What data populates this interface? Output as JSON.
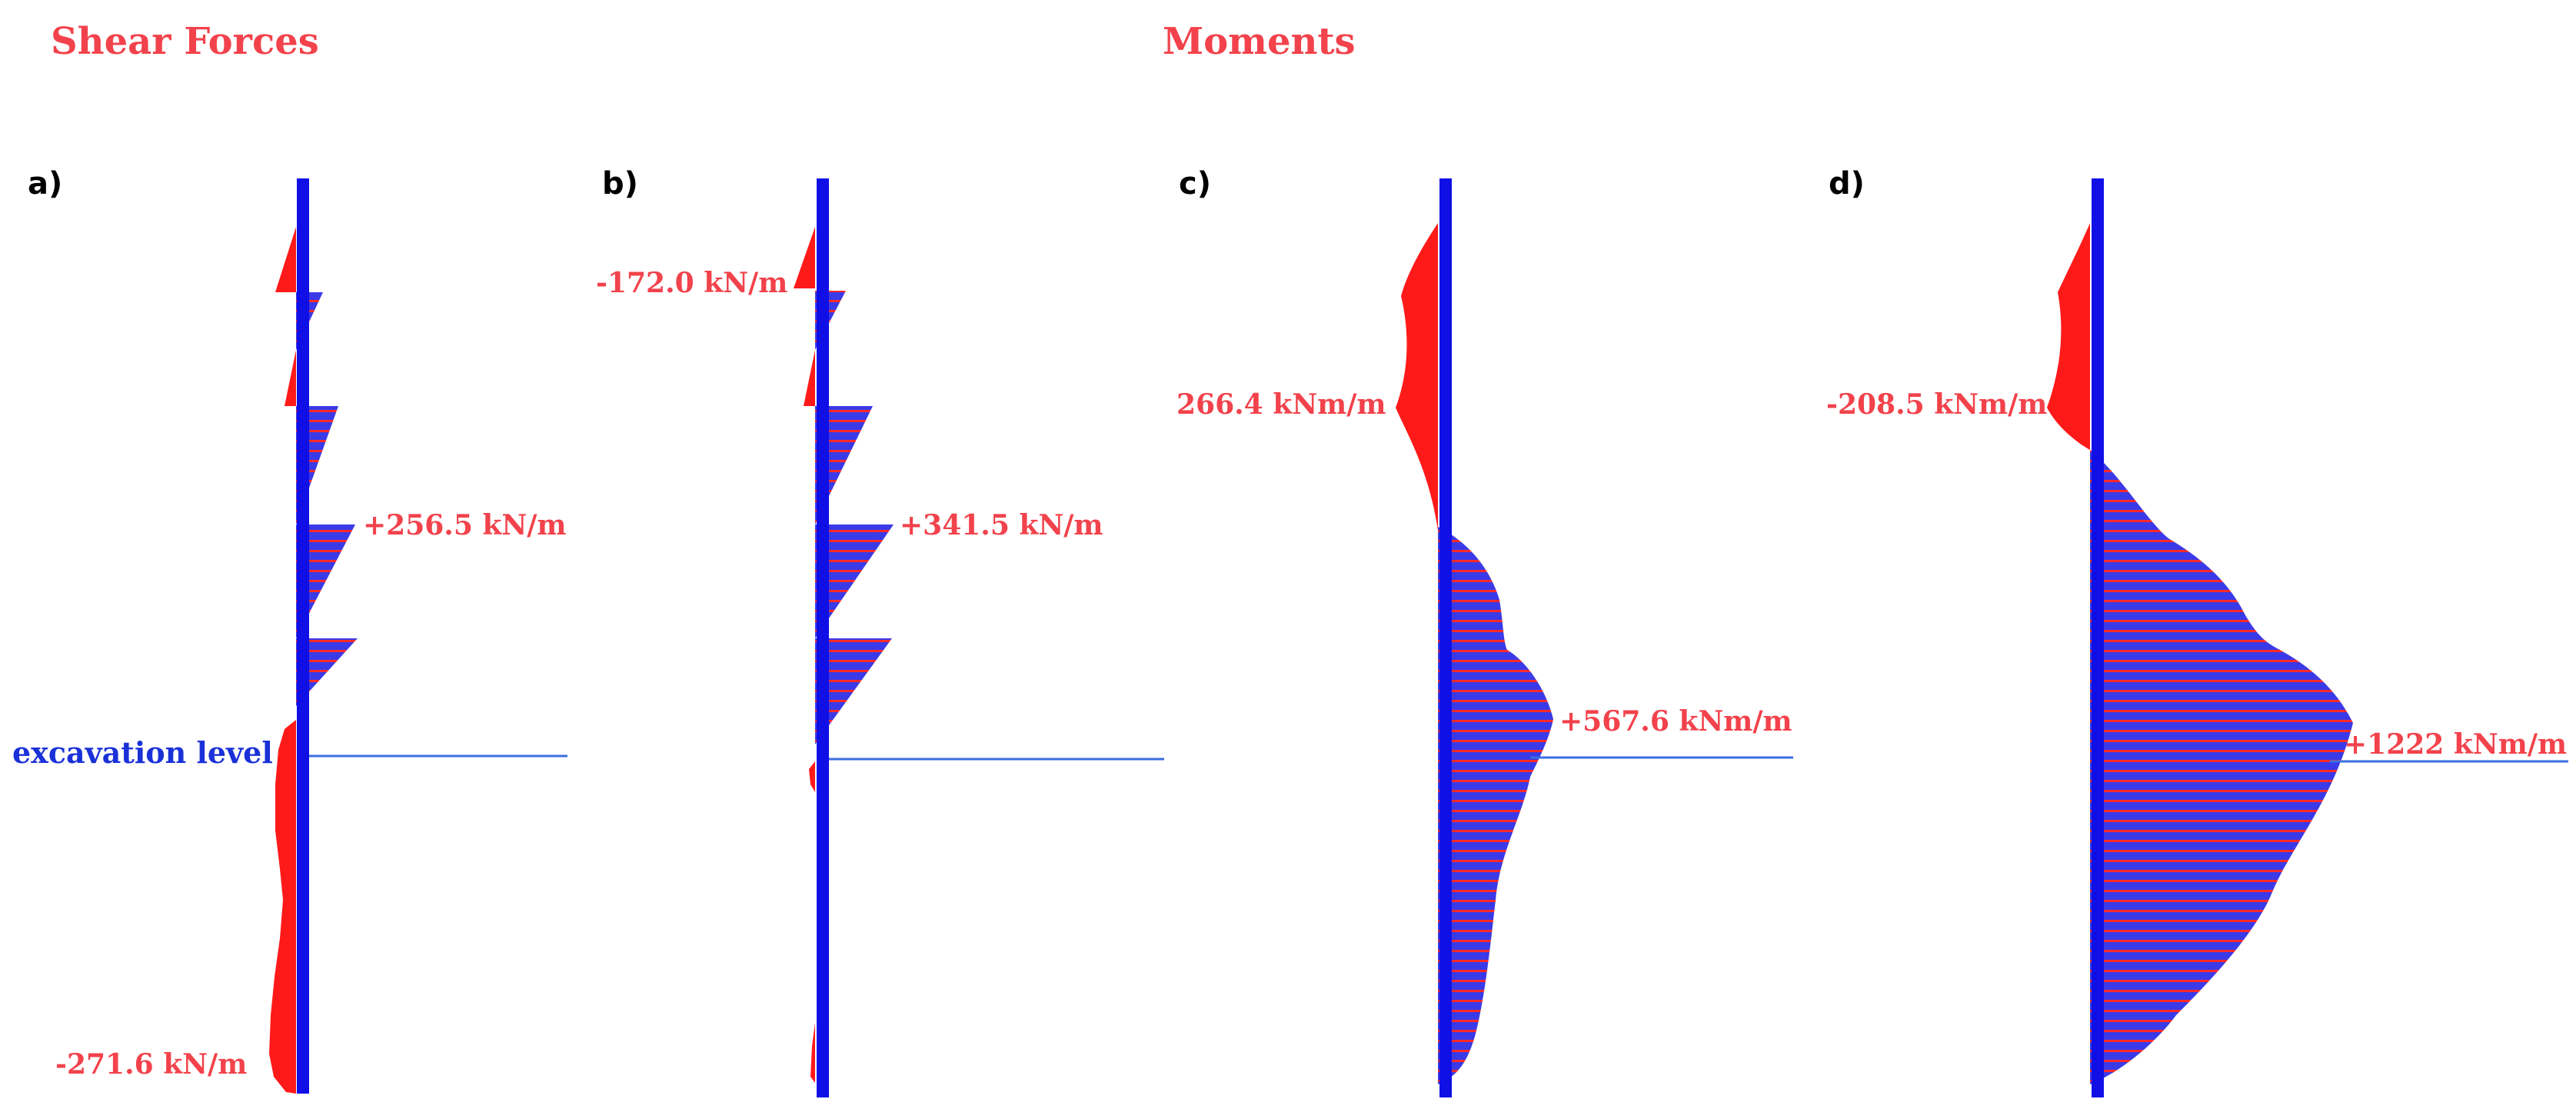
{
  "headings": {
    "shear": "Shear Forces",
    "moments": "Moments"
  },
  "excavation_label": "excavation level",
  "panels": [
    {
      "id": "a",
      "label": "a)",
      "max_value": "+256.5 kN/m",
      "min_value": "-271.6 kN/m"
    },
    {
      "id": "b",
      "label": "b)",
      "max_value": "+341.5 kN/m",
      "min_value": "-172.0 kN/m"
    },
    {
      "id": "c",
      "label": "c)",
      "max_value": "+567.6 kNm/m",
      "min_value": "266.4 kNm/m"
    },
    {
      "id": "d",
      "label": "d)",
      "max_value": "+1222 kNm/m",
      "min_value": "-208.5 kNm/m"
    }
  ],
  "colors": {
    "wall": "#1010e6",
    "negative_fill": "#ff1a1a",
    "positive_fill": "#3a3ae8",
    "hatch": "#ff2a2a",
    "label_red": "#f2424b",
    "excavation_line": "#3a6fe0"
  }
}
